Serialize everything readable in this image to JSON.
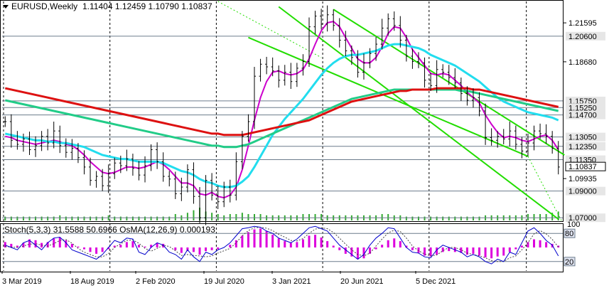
{
  "header": {
    "symbol_label": "EURUSD,Weekly",
    "ohlc": "1.11404 1.12459 1.10790 1.10837"
  },
  "indicator_header": "Stoch(5,3,3) 31.5588 50.6966 OsMA(12,26,9) 0.000193",
  "colors": {
    "candle": "#000000",
    "ma_fast": "#cc00cc",
    "ma_cyan": "#22ddee",
    "ma_green": "#22cc88",
    "ma_red": "#dd1111",
    "channel": "#22dd00",
    "volume": "#33aa33",
    "osma": "#dd00dd",
    "stoch_main": "#0000cc",
    "stoch_signal": "#444444",
    "level_line": "#6c7c8c",
    "label_box": "#e6e6e6"
  },
  "chart_data": [
    {
      "type": "line",
      "name": "price",
      "price_axis": {
        "min": 1.068,
        "max": 1.232
      },
      "x_axis": {
        "labels": [
          "3 Mar 2019",
          "18 Aug 2019",
          "2 Feb 2020",
          "19 Jul 2020",
          "3 Jan 2021",
          "20 Jun 2021",
          "5 Dec 2021"
        ]
      },
      "y_tick_labels": [
        "1.21595",
        "1.18680",
        "1.09935"
      ],
      "level_labels": [
        "1.20600",
        "1.15750",
        "1.15250",
        "1.14700",
        "1.13050",
        "1.12350",
        "1.11350",
        "1.09000",
        "1.07000"
      ],
      "current_price_label": "1.10837",
      "close_series": [
        1.142,
        1.128,
        1.125,
        1.129,
        1.121,
        1.124,
        1.131,
        1.126,
        1.135,
        1.124,
        1.119,
        1.122,
        1.115,
        1.108,
        1.098,
        1.101,
        1.094,
        1.103,
        1.111,
        1.109,
        1.114,
        1.107,
        1.102,
        1.109,
        1.121,
        1.112,
        1.101,
        1.099,
        1.088,
        1.093,
        1.106,
        1.086,
        1.07,
        1.098,
        1.087,
        1.082,
        1.093,
        1.087,
        1.112,
        1.131,
        1.142,
        1.176,
        1.185,
        1.183,
        1.18,
        1.173,
        1.179,
        1.172,
        1.182,
        1.187,
        1.213,
        1.221,
        1.215,
        1.222,
        1.214,
        1.203,
        1.195,
        1.19,
        1.179,
        1.186,
        1.193,
        1.2,
        1.212,
        1.219,
        1.214,
        1.203,
        1.191,
        1.187,
        1.186,
        1.173,
        1.169,
        1.181,
        1.179,
        1.175,
        1.171,
        1.163,
        1.158,
        1.16,
        1.15,
        1.13,
        1.128,
        1.131,
        1.129,
        1.135,
        1.125,
        1.12,
        1.126,
        1.135,
        1.133,
        1.131,
        1.122,
        1.108
      ],
      "moving_averages": [
        {
          "key": "ma_fast",
          "values": [
            1.131,
            1.13,
            1.128,
            1.127,
            1.126,
            1.125,
            1.126,
            1.127,
            1.128,
            1.127,
            1.125,
            1.124,
            1.121,
            1.117,
            1.112,
            1.108,
            1.104,
            1.103,
            1.104,
            1.106,
            1.108,
            1.108,
            1.107,
            1.108,
            1.11,
            1.112,
            1.11,
            1.106,
            1.101,
            1.096,
            1.096,
            1.094,
            1.088,
            1.087,
            1.089,
            1.086,
            1.085,
            1.087,
            1.093,
            1.106,
            1.124,
            1.143,
            1.16,
            1.172,
            1.179,
            1.18,
            1.178,
            1.177,
            1.178,
            1.181,
            1.189,
            1.2,
            1.21,
            1.216,
            1.217,
            1.213,
            1.205,
            1.197,
            1.189,
            1.186,
            1.186,
            1.19,
            1.198,
            1.208,
            1.213,
            1.212,
            1.205,
            1.196,
            1.19,
            1.184,
            1.178,
            1.177,
            1.178,
            1.177,
            1.173,
            1.169,
            1.164,
            1.16,
            1.156,
            1.147,
            1.14,
            1.134,
            1.13,
            1.131,
            1.13,
            1.128,
            1.127,
            1.129,
            1.131,
            1.132,
            1.128,
            1.121
          ]
        },
        {
          "key": "ma_cyan",
          "values": [
            1.133,
            1.132,
            1.131,
            1.13,
            1.129,
            1.128,
            1.128,
            1.127,
            1.127,
            1.126,
            1.126,
            1.125,
            1.124,
            1.123,
            1.121,
            1.119,
            1.117,
            1.116,
            1.115,
            1.114,
            1.114,
            1.113,
            1.112,
            1.112,
            1.112,
            1.112,
            1.111,
            1.109,
            1.107,
            1.105,
            1.104,
            1.102,
            1.099,
            1.097,
            1.096,
            1.094,
            1.093,
            1.093,
            1.094,
            1.097,
            1.101,
            1.108,
            1.116,
            1.124,
            1.132,
            1.138,
            1.144,
            1.149,
            1.154,
            1.159,
            1.165,
            1.171,
            1.177,
            1.182,
            1.186,
            1.189,
            1.191,
            1.192,
            1.192,
            1.193,
            1.194,
            1.195,
            1.197,
            1.199,
            1.2,
            1.2,
            1.199,
            1.198,
            1.197,
            1.195,
            1.192,
            1.19,
            1.188,
            1.186,
            1.184,
            1.181,
            1.178,
            1.175,
            1.172,
            1.168,
            1.164,
            1.16,
            1.157,
            1.155,
            1.153,
            1.151,
            1.149,
            1.148,
            1.147,
            1.146,
            1.145,
            1.143
          ]
        },
        {
          "key": "ma_green",
          "values": [
            1.158,
            1.157,
            1.156,
            1.155,
            1.154,
            1.153,
            1.152,
            1.151,
            1.15,
            1.149,
            1.148,
            1.147,
            1.146,
            1.145,
            1.144,
            1.143,
            1.142,
            1.141,
            1.14,
            1.139,
            1.138,
            1.137,
            1.136,
            1.135,
            1.134,
            1.133,
            1.132,
            1.131,
            1.13,
            1.129,
            1.128,
            1.127,
            1.126,
            1.125,
            1.124,
            1.124,
            1.123,
            1.123,
            1.123,
            1.124,
            1.125,
            1.127,
            1.129,
            1.131,
            1.133,
            1.135,
            1.137,
            1.139,
            1.141,
            1.143,
            1.145,
            1.147,
            1.149,
            1.151,
            1.153,
            1.155,
            1.157,
            1.159,
            1.16,
            1.161,
            1.162,
            1.163,
            1.164,
            1.165,
            1.166,
            1.166,
            1.166,
            1.166,
            1.166,
            1.166,
            1.166,
            1.166,
            1.166,
            1.166,
            1.166,
            1.165,
            1.165,
            1.164,
            1.163,
            1.162,
            1.161,
            1.16,
            1.159,
            1.158,
            1.157,
            1.156,
            1.155,
            1.154,
            1.153,
            1.152,
            1.151,
            1.15
          ]
        },
        {
          "key": "ma_red",
          "values": [
            1.167,
            1.166,
            1.165,
            1.164,
            1.163,
            1.162,
            1.161,
            1.16,
            1.159,
            1.158,
            1.157,
            1.156,
            1.155,
            1.154,
            1.153,
            1.152,
            1.151,
            1.15,
            1.149,
            1.148,
            1.147,
            1.146,
            1.145,
            1.144,
            1.143,
            1.142,
            1.141,
            1.14,
            1.139,
            1.138,
            1.137,
            1.136,
            1.135,
            1.134,
            1.133,
            1.133,
            1.132,
            1.132,
            1.132,
            1.132,
            1.133,
            1.134,
            1.135,
            1.136,
            1.137,
            1.138,
            1.139,
            1.14,
            1.141,
            1.142,
            1.143,
            1.145,
            1.147,
            1.149,
            1.151,
            1.153,
            1.155,
            1.157,
            1.158,
            1.159,
            1.16,
            1.161,
            1.162,
            1.163,
            1.164,
            1.165,
            1.165,
            1.166,
            1.166,
            1.166,
            1.166,
            1.167,
            1.167,
            1.167,
            1.167,
            1.167,
            1.167,
            1.166,
            1.166,
            1.165,
            1.164,
            1.163,
            1.162,
            1.161,
            1.16,
            1.159,
            1.158,
            1.157,
            1.156,
            1.155,
            1.154,
            1.153
          ]
        }
      ],
      "volume_relative": [
        0.3,
        0.3,
        0.3,
        0.3,
        0.3,
        0.3,
        0.3,
        0.3,
        0.3,
        0.4,
        0.3,
        0.3,
        0.3,
        0.3,
        0.3,
        0.3,
        0.3,
        0.4,
        0.3,
        0.3,
        0.3,
        0.3,
        0.3,
        0.3,
        0.3,
        0.3,
        0.3,
        0.3,
        0.5,
        0.4,
        0.6,
        0.8,
        1.0,
        0.7,
        0.6,
        0.5,
        0.4,
        0.5,
        0.5,
        0.6,
        0.5,
        0.5,
        0.5,
        0.4,
        0.4,
        0.4,
        0.4,
        0.4,
        0.4,
        0.5,
        0.5,
        0.5,
        0.5,
        0.4,
        0.4,
        0.4,
        0.4,
        0.4,
        0.4,
        0.4,
        0.4,
        0.4,
        0.5,
        0.5,
        0.4,
        0.4,
        0.3,
        0.3,
        0.3,
        0.3,
        0.3,
        0.3,
        0.3,
        0.3,
        0.3,
        0.3,
        0.3,
        0.3,
        0.3,
        0.4,
        0.4,
        0.4,
        0.4,
        0.4,
        0.4,
        0.4,
        0.5,
        0.5,
        0.5,
        0.5,
        0.6,
        0.7
      ],
      "channels": [
        {
          "kind": "solid",
          "points": [
            [
              33,
              1.232
            ],
            [
              80,
              1.16
            ],
            [
              84,
              1.068
            ]
          ]
        },
        {
          "kind": "solid",
          "points": [
            [
              42,
              1.232
            ],
            [
              92,
              1.165
            ],
            [
              92,
              1.078
            ]
          ]
        },
        {
          "kind": "solid",
          "points": [
            [
              42,
              1.232
            ],
            [
              89,
              1.158
            ],
            [
              89,
              1.072
            ]
          ]
        }
      ]
    },
    {
      "type": "line",
      "name": "indicator",
      "y_tick_labels": [
        "100",
        "80",
        "20"
      ],
      "stoch_main": [
        55,
        50,
        45,
        60,
        65,
        55,
        45,
        60,
        70,
        72,
        60,
        45,
        40,
        35,
        30,
        25,
        35,
        50,
        65,
        60,
        70,
        68,
        40,
        35,
        50,
        60,
        55,
        40,
        35,
        25,
        45,
        30,
        20,
        40,
        35,
        45,
        50,
        60,
        75,
        90,
        92,
        95,
        93,
        85,
        80,
        70,
        65,
        60,
        68,
        80,
        92,
        95,
        90,
        85,
        70,
        55,
        45,
        35,
        25,
        35,
        55,
        70,
        80,
        92,
        90,
        70,
        50,
        40,
        38,
        30,
        28,
        45,
        55,
        50,
        45,
        40,
        30,
        35,
        30,
        20,
        15,
        25,
        20,
        40,
        35,
        60,
        85,
        92,
        80,
        65,
        55,
        32
      ],
      "stoch_signal": [
        52,
        51,
        50,
        53,
        57,
        58,
        55,
        53,
        58,
        65,
        67,
        59,
        48,
        40,
        35,
        30,
        30,
        37,
        50,
        58,
        65,
        66,
        59,
        48,
        42,
        48,
        55,
        52,
        43,
        33,
        35,
        33,
        32,
        30,
        32,
        38,
        43,
        48,
        60,
        75,
        86,
        92,
        93,
        91,
        86,
        78,
        72,
        65,
        64,
        69,
        80,
        89,
        92,
        90,
        82,
        70,
        57,
        45,
        35,
        32,
        38,
        53,
        68,
        81,
        87,
        84,
        70,
        53,
        43,
        36,
        32,
        34,
        43,
        50,
        50,
        45,
        38,
        35,
        32,
        28,
        22,
        20,
        20,
        28,
        32,
        45,
        60,
        79,
        86,
        79,
        67,
        51
      ],
      "osma": [
        0.6,
        0.4,
        0.2,
        0.5,
        0.9,
        0.8,
        0.5,
        0.6,
        1.0,
        1.1,
        0.8,
        0.4,
        0.1,
        -0.2,
        -0.5,
        -0.7,
        -0.5,
        -0.2,
        0.2,
        0.3,
        0.6,
        0.7,
        0.3,
        0.1,
        0.3,
        0.5,
        0.4,
        0.0,
        -0.3,
        -0.6,
        -0.4,
        -0.5,
        -0.8,
        -0.4,
        -0.3,
        -0.2,
        0.0,
        0.3,
        0.8,
        1.3,
        1.7,
        2.0,
        2.1,
        1.8,
        1.4,
        1.0,
        0.7,
        0.5,
        0.6,
        0.9,
        1.3,
        1.4,
        1.1,
        0.7,
        0.2,
        -0.3,
        -0.7,
        -1.0,
        -1.3,
        -1.2,
        -0.7,
        -0.2,
        0.3,
        0.8,
        1.0,
        0.7,
        0.2,
        -0.3,
        -0.6,
        -0.9,
        -1.0,
        -0.8,
        -0.5,
        -0.4,
        -0.5,
        -0.6,
        -0.8,
        -0.7,
        -0.9,
        -1.1,
        -1.2,
        -1.0,
        -0.9,
        -0.5,
        -0.2,
        0.2,
        0.6,
        0.9,
        0.8,
        0.6,
        0.4,
        0.2
      ]
    }
  ]
}
